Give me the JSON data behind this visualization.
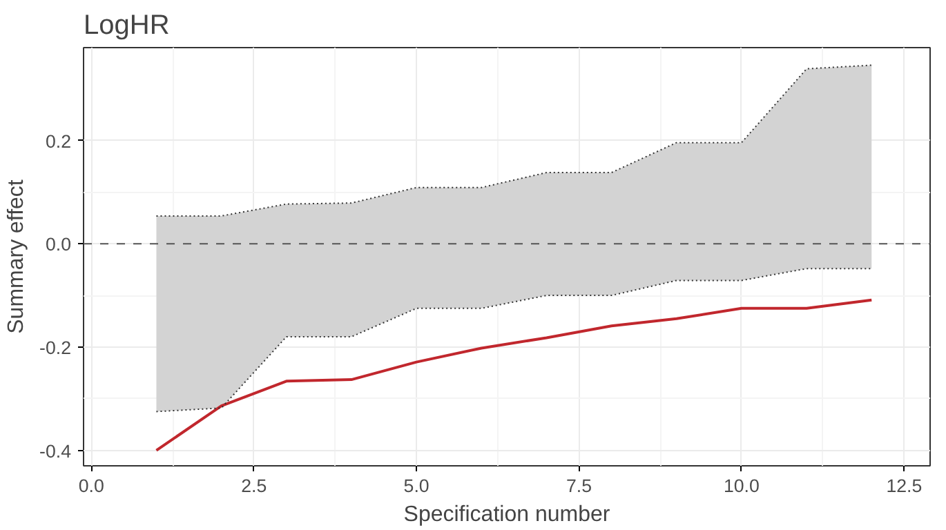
{
  "chart_data": {
    "type": "line",
    "title": "LogHR",
    "xlabel": "Specification number",
    "ylabel": "Summary effect",
    "x": [
      1,
      2,
      3,
      4,
      5,
      6,
      7,
      8,
      9,
      10,
      11,
      12
    ],
    "series": [
      {
        "color": "#c1272d",
        "values": [
          -0.4,
          -0.314,
          -0.266,
          -0.263,
          -0.229,
          -0.202,
          -0.182,
          -0.159,
          -0.145,
          -0.125,
          -0.125,
          -0.109
        ],
        "lower": [
          -0.325,
          -0.318,
          -0.18,
          -0.18,
          -0.125,
          -0.125,
          -0.1,
          -0.1,
          -0.071,
          -0.071,
          -0.048,
          -0.048
        ],
        "upper": [
          0.054,
          0.054,
          0.077,
          0.079,
          0.109,
          0.109,
          0.138,
          0.138,
          0.196,
          0.196,
          0.339,
          0.346
        ]
      },
      {
        "color": "#333333",
        "line_style": "dotted",
        "values": [
          -0.325,
          -0.318,
          -0.18,
          -0.18,
          -0.125,
          -0.125,
          -0.1,
          -0.1,
          -0.071,
          -0.071,
          -0.048,
          -0.048
        ]
      },
      {
        "color": "#333333",
        "line_style": "dotted",
        "values": [
          0.054,
          0.054,
          0.077,
          0.079,
          0.109,
          0.109,
          0.138,
          0.138,
          0.196,
          0.196,
          0.339,
          0.346
        ]
      }
    ],
    "xlim": [
      -0.12,
      12.9
    ],
    "xticks": [
      {
        "value": 0,
        "label": "0.0"
      },
      2.5,
      {
        "value": 5,
        "label": "5.0"
      },
      7.5,
      {
        "value": 10,
        "label": "10.0"
      },
      12.5
    ],
    "ylim": [
      -0.43,
      0.38
    ],
    "yticks": [
      -0.4,
      -0.2,
      {
        "value": 0,
        "label": "0.0"
      },
      0.2
    ],
    "ref_lines": [
      {
        "axis": "y",
        "value": 0,
        "line_style": "dashed",
        "color": "#555555"
      }
    ],
    "grid": true,
    "line_style": "solid"
  }
}
